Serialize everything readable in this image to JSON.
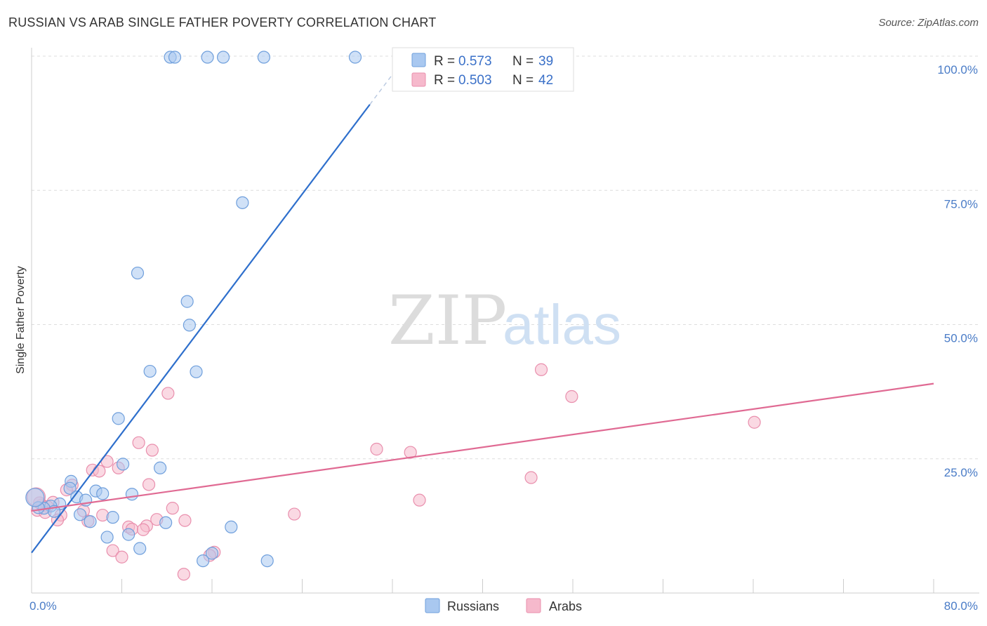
{
  "title": "RUSSIAN VS ARAB SINGLE FATHER POVERTY CORRELATION CHART",
  "source": "Source: ZipAtlas.com",
  "watermark": {
    "zip": "ZIP",
    "atlas": "atlas"
  },
  "colors": {
    "russians_fill": "#a9c8f0",
    "russians_stroke": "#6f9fdc",
    "russians_line": "#2e6fcc",
    "arabs_fill": "#f6b9cc",
    "arabs_stroke": "#e98fad",
    "arabs_line": "#e06a93",
    "grid": "#dddddd",
    "axis_text": "#4a7cc7"
  },
  "legend": {
    "row1": {
      "r_label": "R =",
      "r_value": "0.573",
      "n_label": "N =",
      "n_value": "39"
    },
    "row2": {
      "r_label": "R =",
      "r_value": "0.503",
      "n_label": "N =",
      "n_value": "42"
    }
  },
  "bottom_legend": {
    "russians": "Russians",
    "arabs": "Arabs"
  },
  "chart_data": {
    "type": "scatter",
    "title": "RUSSIAN VS ARAB SINGLE FATHER POVERTY CORRELATION CHART",
    "xlabel": "",
    "ylabel": "Single Father Poverty",
    "xlim": [
      0,
      80
    ],
    "ylim": [
      0,
      100
    ],
    "x_tick_labels": [
      "0.0%",
      "80.0%"
    ],
    "y_tick_labels": [
      "100.0%",
      "75.0%",
      "50.0%",
      "25.0%"
    ],
    "y_tick_values": [
      100,
      75,
      50,
      25
    ],
    "series": [
      {
        "name": "Russians",
        "r": 0.573,
        "n": 39,
        "trend": {
          "x0": 0,
          "y0": 7.5,
          "x1": 30,
          "y1": 91.0,
          "dash_to_x": 33.5
        },
        "points": [
          {
            "x": 12.3,
            "y": 99.8
          },
          {
            "x": 12.7,
            "y": 99.8
          },
          {
            "x": 15.6,
            "y": 99.8
          },
          {
            "x": 17.0,
            "y": 99.8
          },
          {
            "x": 20.6,
            "y": 99.8
          },
          {
            "x": 28.7,
            "y": 99.8
          },
          {
            "x": 18.7,
            "y": 72.7
          },
          {
            "x": 9.4,
            "y": 59.6
          },
          {
            "x": 13.8,
            "y": 54.3
          },
          {
            "x": 14.0,
            "y": 49.9
          },
          {
            "x": 10.5,
            "y": 41.3
          },
          {
            "x": 14.6,
            "y": 41.2
          },
          {
            "x": 7.7,
            "y": 32.5
          },
          {
            "x": 8.1,
            "y": 24.0
          },
          {
            "x": 11.4,
            "y": 23.3
          },
          {
            "x": 3.5,
            "y": 20.8
          },
          {
            "x": 3.4,
            "y": 19.5
          },
          {
            "x": 5.7,
            "y": 19.0
          },
          {
            "x": 6.3,
            "y": 18.5
          },
          {
            "x": 8.9,
            "y": 18.4
          },
          {
            "x": 4.0,
            "y": 17.9
          },
          {
            "x": 4.8,
            "y": 17.3
          },
          {
            "x": 2.5,
            "y": 16.6
          },
          {
            "x": 1.7,
            "y": 16.2
          },
          {
            "x": 1.1,
            "y": 15.8
          },
          {
            "x": 0.6,
            "y": 15.9
          },
          {
            "x": 2.0,
            "y": 15.2
          },
          {
            "x": 4.3,
            "y": 14.6
          },
          {
            "x": 7.2,
            "y": 14.1
          },
          {
            "x": 5.2,
            "y": 13.3
          },
          {
            "x": 11.9,
            "y": 13.1
          },
          {
            "x": 17.7,
            "y": 12.3
          },
          {
            "x": 8.6,
            "y": 10.9
          },
          {
            "x": 6.7,
            "y": 10.4
          },
          {
            "x": 9.6,
            "y": 8.3
          },
          {
            "x": 16.0,
            "y": 7.4
          },
          {
            "x": 15.2,
            "y": 6.0
          },
          {
            "x": 20.9,
            "y": 6.0
          },
          {
            "x": 0.3,
            "y": 17.8
          }
        ]
      },
      {
        "name": "Arabs",
        "r": 0.503,
        "n": 42,
        "trend": {
          "x0": 0,
          "y0": 15.3,
          "x1": 80,
          "y1": 39.0
        },
        "points": [
          {
            "x": 45.2,
            "y": 41.6
          },
          {
            "x": 12.1,
            "y": 37.2
          },
          {
            "x": 47.9,
            "y": 36.6
          },
          {
            "x": 64.1,
            "y": 31.8
          },
          {
            "x": 9.5,
            "y": 28.0
          },
          {
            "x": 30.6,
            "y": 26.8
          },
          {
            "x": 10.7,
            "y": 26.6
          },
          {
            "x": 33.6,
            "y": 26.2
          },
          {
            "x": 6.7,
            "y": 24.5
          },
          {
            "x": 7.7,
            "y": 23.3
          },
          {
            "x": 5.4,
            "y": 22.9
          },
          {
            "x": 6.0,
            "y": 22.7
          },
          {
            "x": 44.3,
            "y": 21.5
          },
          {
            "x": 10.4,
            "y": 20.2
          },
          {
            "x": 3.6,
            "y": 20.1
          },
          {
            "x": 3.1,
            "y": 19.2
          },
          {
            "x": 34.4,
            "y": 17.3
          },
          {
            "x": 1.9,
            "y": 16.9
          },
          {
            "x": 1.4,
            "y": 16.1
          },
          {
            "x": 0.9,
            "y": 16.4
          },
          {
            "x": 12.5,
            "y": 15.8
          },
          {
            "x": 4.6,
            "y": 15.3
          },
          {
            "x": 23.3,
            "y": 14.7
          },
          {
            "x": 2.6,
            "y": 14.5
          },
          {
            "x": 6.3,
            "y": 14.5
          },
          {
            "x": 11.1,
            "y": 13.7
          },
          {
            "x": 2.3,
            "y": 13.6
          },
          {
            "x": 5.0,
            "y": 13.4
          },
          {
            "x": 13.6,
            "y": 13.5
          },
          {
            "x": 10.2,
            "y": 12.5
          },
          {
            "x": 8.6,
            "y": 12.3
          },
          {
            "x": 8.9,
            "y": 11.9
          },
          {
            "x": 9.9,
            "y": 11.8
          },
          {
            "x": 0.5,
            "y": 15.4
          },
          {
            "x": 7.2,
            "y": 7.9
          },
          {
            "x": 8.0,
            "y": 6.7
          },
          {
            "x": 16.2,
            "y": 7.6
          },
          {
            "x": 15.8,
            "y": 7.0
          },
          {
            "x": 13.5,
            "y": 3.5
          },
          {
            "x": 1.2,
            "y": 15.0
          },
          {
            "x": 0.7,
            "y": 16.8
          },
          {
            "x": 0.4,
            "y": 17.9
          }
        ]
      }
    ]
  }
}
